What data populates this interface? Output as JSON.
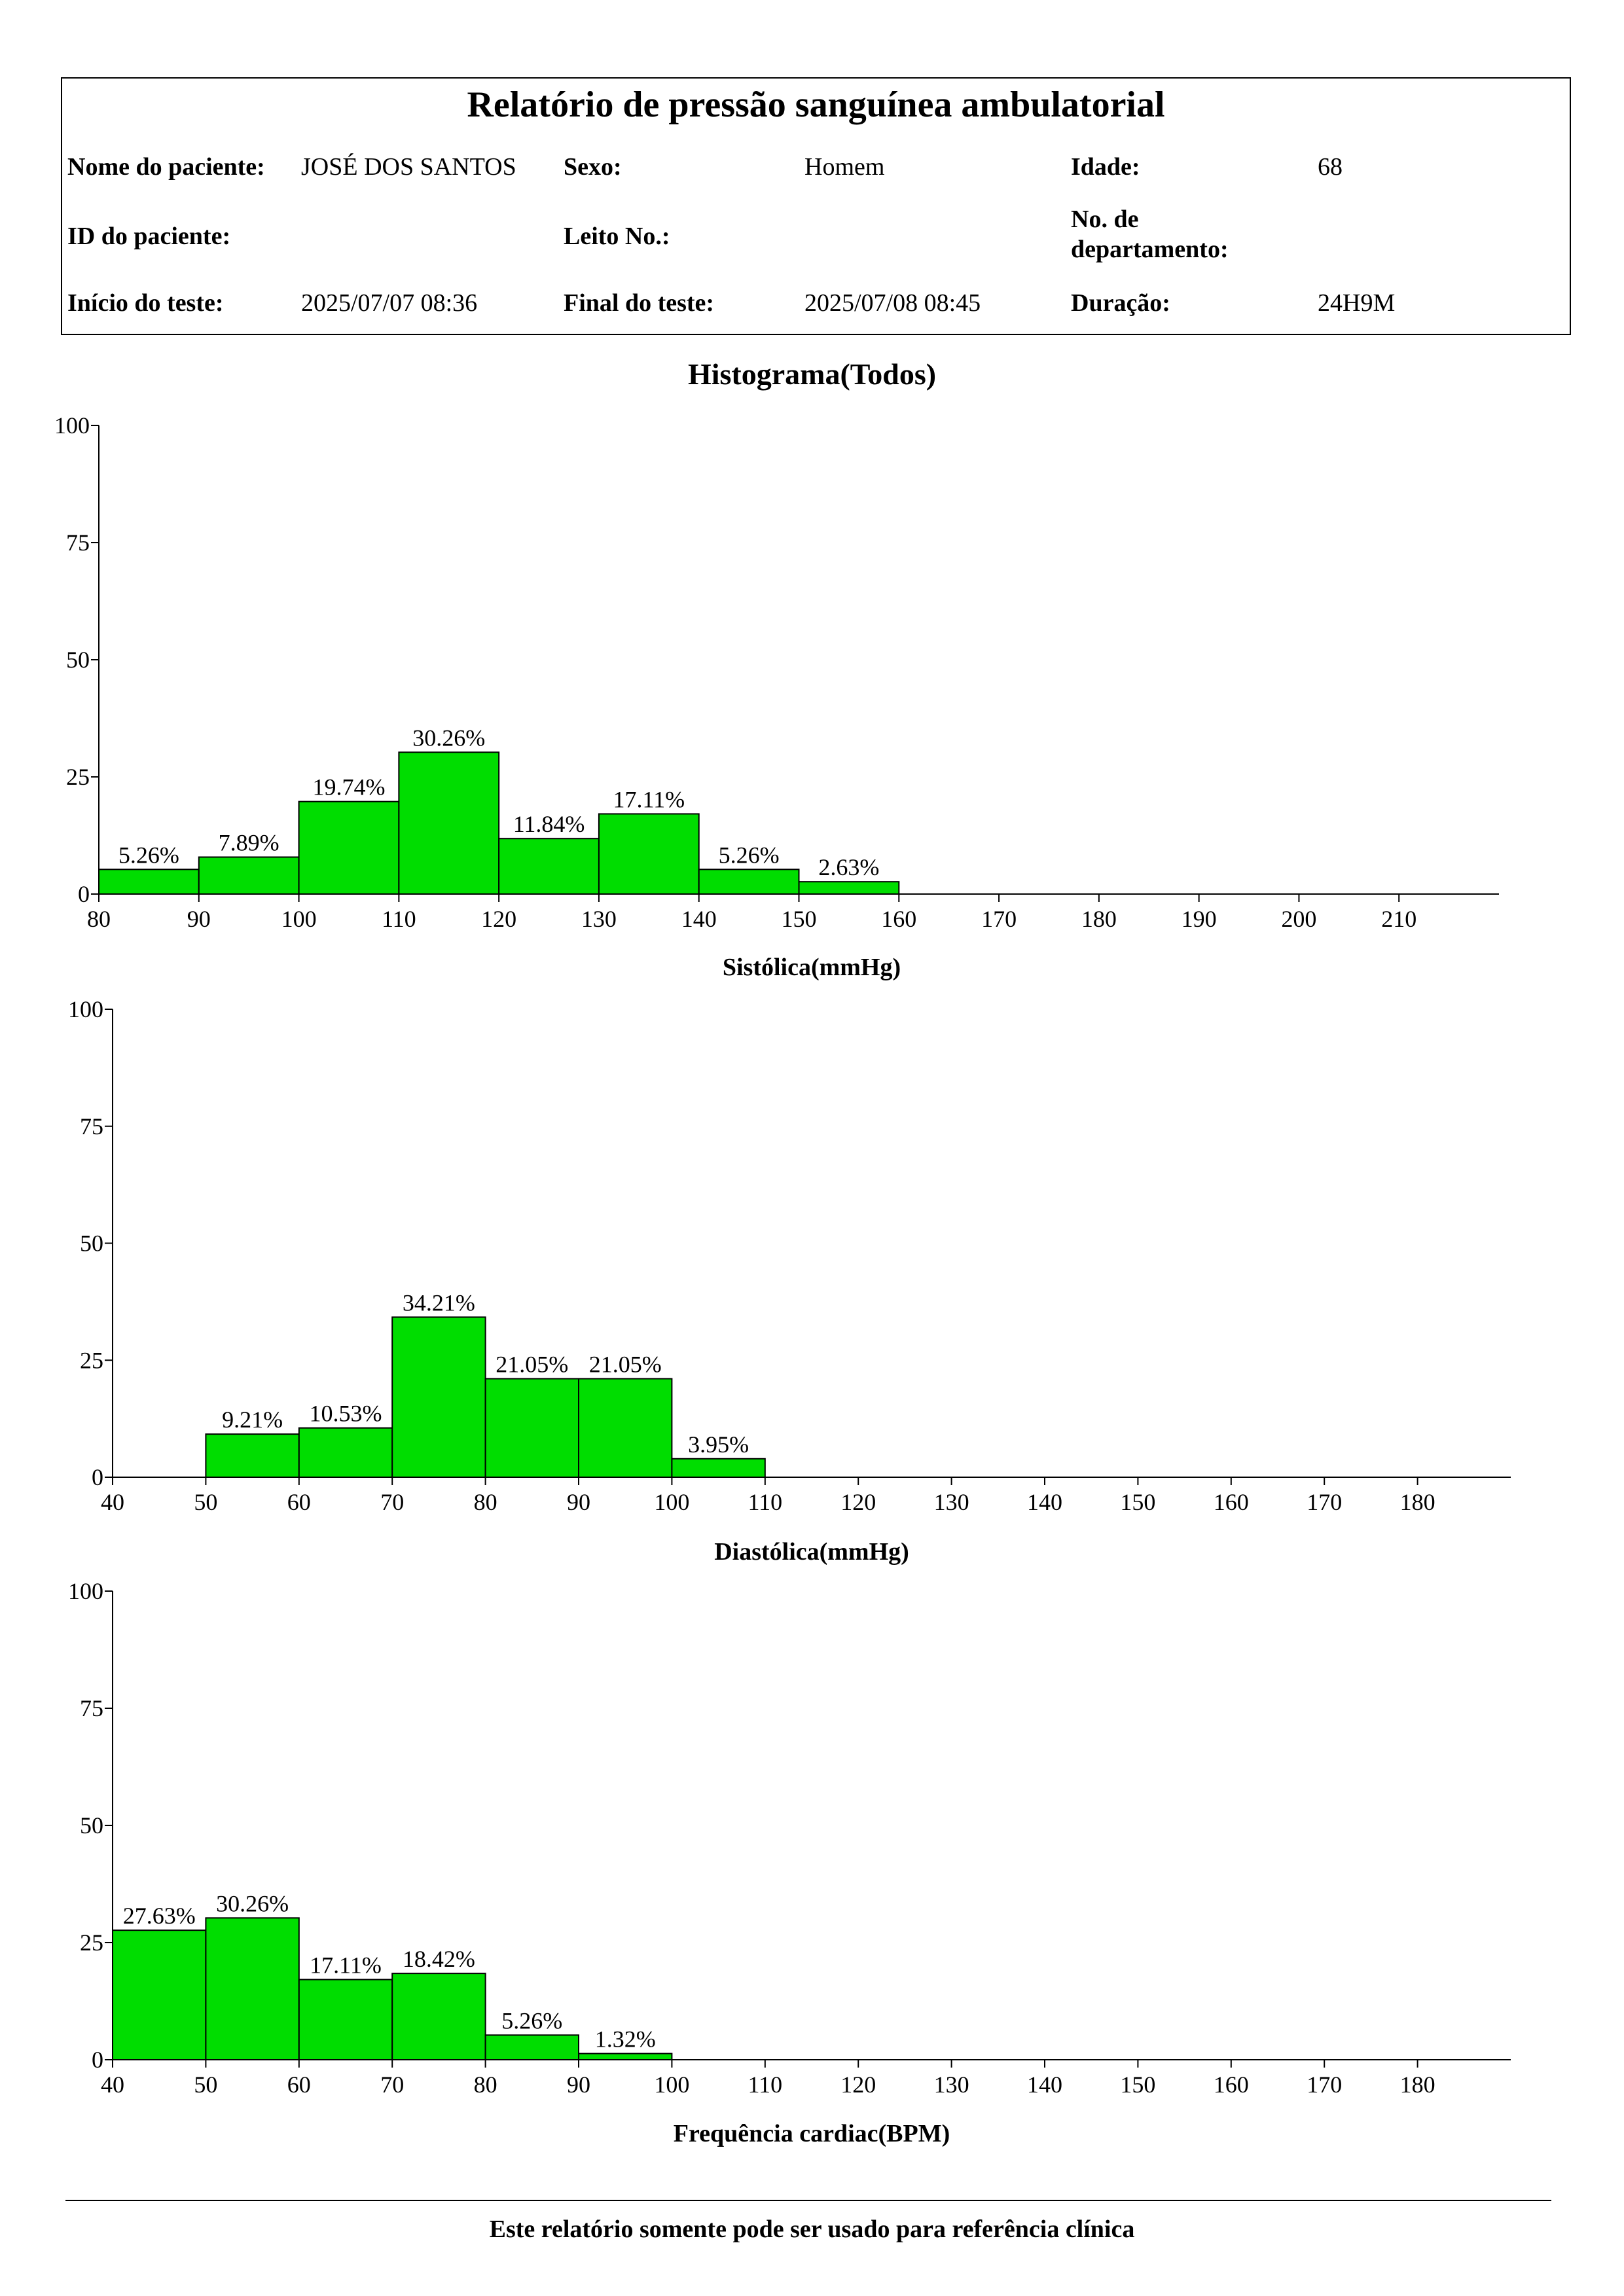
{
  "header": {
    "title": "Relatório de pressão sanguínea ambulatorial",
    "patient_name_label": "Nome do paciente:",
    "patient_name": "JOSÉ DOS SANTOS",
    "sex_label": "Sexo:",
    "sex": "Homem",
    "age_label": "Idade:",
    "age": "68",
    "patient_id_label": "ID do paciente:",
    "patient_id": "",
    "bed_label": "Leito No.:",
    "bed": "",
    "department_label_line1": "No. de",
    "department_label_line2": "departamento:",
    "department": "",
    "test_start_label": "Início do teste:",
    "test_start": "2025/07/07 08:36",
    "test_end_label": "Final do teste:",
    "test_end": "2025/07/08 08:45",
    "duration_label": "Duração:",
    "duration": "24H9M"
  },
  "section_title": "Histograma(Todos)",
  "footer": {
    "note": "Este relatório somente pode ser usado para referência clínica"
  },
  "colors": {
    "bar_fill": "#00dd00",
    "bar_stroke": "#000000",
    "axis": "#000000"
  },
  "chart_data": [
    {
      "type": "bar",
      "id": "systolic",
      "title": "",
      "xlabel": "Sistólica(mmHg)",
      "ylabel": "",
      "ylim": [
        0,
        100
      ],
      "yticks": [
        0,
        25,
        50,
        75,
        100
      ],
      "xlim": [
        80,
        220
      ],
      "xticks": [
        80,
        90,
        100,
        110,
        120,
        130,
        140,
        150,
        160,
        170,
        180,
        190,
        200,
        210
      ],
      "bins": [
        {
          "start": 80,
          "end": 90,
          "value": 5.26,
          "label": "5.26%"
        },
        {
          "start": 90,
          "end": 100,
          "value": 7.89,
          "label": "7.89%"
        },
        {
          "start": 100,
          "end": 110,
          "value": 19.74,
          "label": "19.74%"
        },
        {
          "start": 110,
          "end": 120,
          "value": 30.26,
          "label": "30.26%"
        },
        {
          "start": 120,
          "end": 130,
          "value": 11.84,
          "label": "11.84%"
        },
        {
          "start": 130,
          "end": 140,
          "value": 17.11,
          "label": "17.11%"
        },
        {
          "start": 140,
          "end": 150,
          "value": 5.26,
          "label": "5.26%"
        },
        {
          "start": 150,
          "end": 160,
          "value": 2.63,
          "label": "2.63%"
        }
      ]
    },
    {
      "type": "bar",
      "id": "diastolic",
      "title": "",
      "xlabel": "Diastólica(mmHg)",
      "ylabel": "",
      "ylim": [
        0,
        100
      ],
      "yticks": [
        0,
        25,
        50,
        75,
        100
      ],
      "xlim": [
        40,
        190
      ],
      "xticks": [
        40,
        50,
        60,
        70,
        80,
        90,
        100,
        110,
        120,
        130,
        140,
        150,
        160,
        170,
        180
      ],
      "bins": [
        {
          "start": 50,
          "end": 60,
          "value": 9.21,
          "label": "9.21%"
        },
        {
          "start": 60,
          "end": 70,
          "value": 10.53,
          "label": "10.53%"
        },
        {
          "start": 70,
          "end": 80,
          "value": 34.21,
          "label": "34.21%"
        },
        {
          "start": 80,
          "end": 90,
          "value": 21.05,
          "label": "21.05%"
        },
        {
          "start": 90,
          "end": 100,
          "value": 21.05,
          "label": "21.05%"
        },
        {
          "start": 100,
          "end": 110,
          "value": 3.95,
          "label": "3.95%"
        }
      ]
    },
    {
      "type": "bar",
      "id": "heart_rate",
      "title": "",
      "xlabel": "Frequência cardiac(BPM)",
      "ylabel": "",
      "ylim": [
        0,
        100
      ],
      "yticks": [
        0,
        25,
        50,
        75,
        100
      ],
      "xlim": [
        40,
        190
      ],
      "xticks": [
        40,
        50,
        60,
        70,
        80,
        90,
        100,
        110,
        120,
        130,
        140,
        150,
        160,
        170,
        180
      ],
      "bins": [
        {
          "start": 40,
          "end": 50,
          "value": 27.63,
          "label": "27.63%"
        },
        {
          "start": 50,
          "end": 60,
          "value": 30.26,
          "label": "30.26%"
        },
        {
          "start": 60,
          "end": 70,
          "value": 17.11,
          "label": "17.11%"
        },
        {
          "start": 70,
          "end": 80,
          "value": 18.42,
          "label": "18.42%"
        },
        {
          "start": 80,
          "end": 90,
          "value": 5.26,
          "label": "5.26%"
        },
        {
          "start": 90,
          "end": 100,
          "value": 1.32,
          "label": "1.32%"
        }
      ]
    }
  ]
}
